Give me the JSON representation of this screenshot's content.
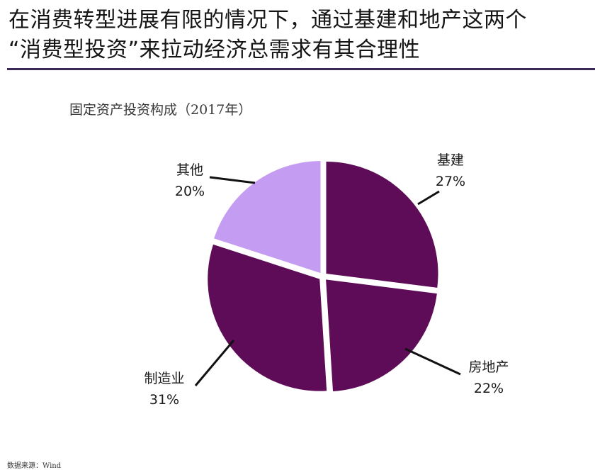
{
  "title": {
    "line1": "在消费转型进展有限的情况下，通过基建和地产这两个",
    "line2": "“消费型投资”来拉动经济总需求有其合理性"
  },
  "source": "数据来源：Wind",
  "colors": {
    "dark": "#5e0c57",
    "light": "#c49cf2",
    "divider": "#3b2a57",
    "separator": "#ffffff"
  },
  "chart_data": {
    "type": "pie",
    "title": "固定资产投资构成（2017年）",
    "start_angle_deg": 0,
    "direction": "clockwise",
    "slices": [
      {
        "label": "基建",
        "value": 27,
        "display": "27%",
        "color": "#5e0c57"
      },
      {
        "label": "房地产",
        "value": 22,
        "display": "22%",
        "color": "#5e0c57"
      },
      {
        "label": "制造业",
        "value": 31,
        "display": "31%",
        "color": "#5e0c57"
      },
      {
        "label": "其他",
        "value": 20,
        "display": "20%",
        "color": "#c49cf2"
      }
    ]
  }
}
